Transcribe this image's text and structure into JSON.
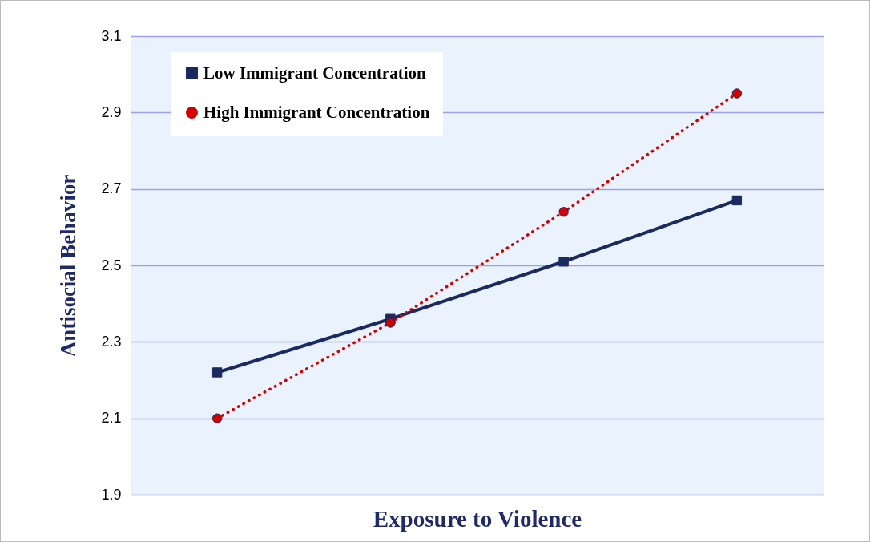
{
  "chart_data": {
    "type": "line",
    "xlabel": "Exposure to Violence",
    "ylabel": "Antisocial Behavior",
    "categories": [
      null,
      null,
      null,
      null
    ],
    "series": [
      {
        "name": "Low Immigrant Concentration",
        "color": "#1b2a5e",
        "values": [
          2.22,
          2.36,
          2.51,
          2.67
        ],
        "marker": "square",
        "line_style": "solid"
      },
      {
        "name": "High Immigrant Concentration",
        "color": "#d40000",
        "values": [
          2.1,
          2.35,
          2.64,
          2.95
        ],
        "marker": "circle",
        "line_style": "dotted"
      }
    ],
    "ylim": [
      1.9,
      3.1
    ],
    "yticks": [
      1.9,
      2.1,
      2.3,
      2.5,
      2.7,
      2.9,
      3.1
    ],
    "grid": "y",
    "legend": "top left",
    "tick_labels": "y"
  }
}
